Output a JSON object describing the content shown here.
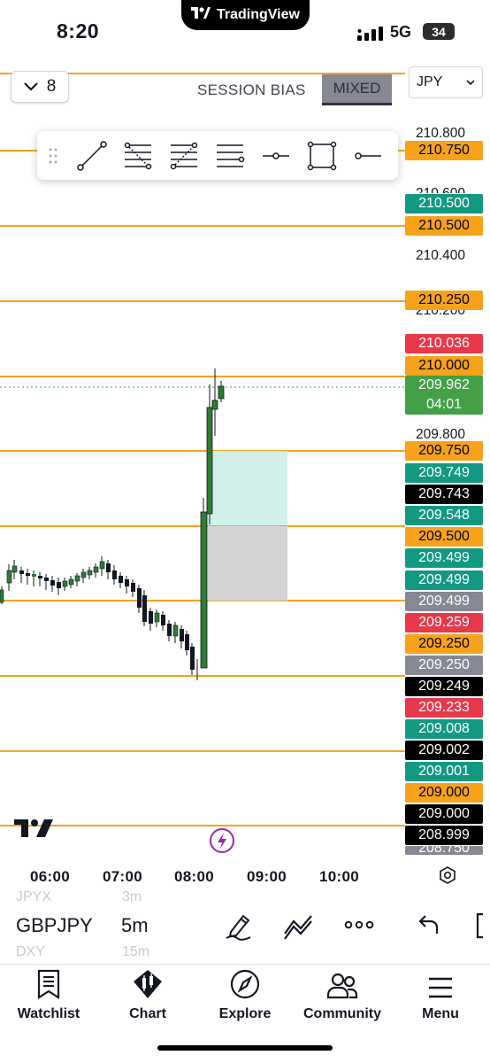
{
  "status_bar": {
    "time": "8:20",
    "island_text": "TradingView",
    "network": "5G",
    "battery": "34"
  },
  "header": {
    "interval_value": "8",
    "session_bias_label": "SESSION BIAS",
    "session_bias_value": "MIXED",
    "currency": "JPY"
  },
  "price_axis": {
    "labels": [
      "210.800",
      "210.600",
      "210.400",
      "210.200",
      "209.800"
    ],
    "tags": [
      {
        "text": "210.750",
        "bg": "#f7a21b",
        "fg": "#000000"
      },
      {
        "text": "210.500",
        "bg": "#139981",
        "fg": "#ffffff"
      },
      {
        "text": "210.500",
        "bg": "#f7a21b",
        "fg": "#000000"
      },
      {
        "text": "210.250",
        "bg": "#f7a21b",
        "fg": "#000000"
      },
      {
        "text": "210.036",
        "bg": "#e8384a",
        "fg": "#ffffff"
      },
      {
        "text": "210.000",
        "bg": "#f7a21b",
        "fg": "#000000"
      },
      {
        "text": "209.750",
        "bg": "#f7a21b",
        "fg": "#000000"
      },
      {
        "text": "209.749",
        "bg": "#139981",
        "fg": "#ffffff"
      },
      {
        "text": "209.743",
        "bg": "#000000",
        "fg": "#ffffff"
      },
      {
        "text": "209.548",
        "bg": "#139981",
        "fg": "#ffffff"
      },
      {
        "text": "209.500",
        "bg": "#f7a21b",
        "fg": "#000000"
      },
      {
        "text": "209.499",
        "bg": "#139981",
        "fg": "#ffffff"
      },
      {
        "text": "209.499",
        "bg": "#139981",
        "fg": "#ffffff"
      },
      {
        "text": "209.499",
        "bg": "#868993",
        "fg": "#ffffff"
      },
      {
        "text": "209.259",
        "bg": "#e8384a",
        "fg": "#ffffff"
      },
      {
        "text": "209.250",
        "bg": "#f7a21b",
        "fg": "#000000"
      },
      {
        "text": "209.250",
        "bg": "#868993",
        "fg": "#ffffff"
      },
      {
        "text": "209.249",
        "bg": "#000000",
        "fg": "#ffffff"
      },
      {
        "text": "209.233",
        "bg": "#e8384a",
        "fg": "#ffffff"
      },
      {
        "text": "209.008",
        "bg": "#139981",
        "fg": "#ffffff"
      },
      {
        "text": "209.002",
        "bg": "#000000",
        "fg": "#ffffff"
      },
      {
        "text": "209.001",
        "bg": "#139981",
        "fg": "#ffffff"
      },
      {
        "text": "209.000",
        "bg": "#f7a21b",
        "fg": "#000000"
      },
      {
        "text": "209.000",
        "bg": "#000000",
        "fg": "#ffffff"
      },
      {
        "text": "208.999",
        "bg": "#000000",
        "fg": "#ffffff"
      },
      {
        "text": "208.750",
        "bg": "#868993",
        "fg": "#ffffff"
      }
    ],
    "current_price": "209.962",
    "countdown": "04:01",
    "current_color": "#43a047"
  },
  "colors": {
    "level_line": "#f7a21b",
    "bull": "#2e7d32",
    "bear": "#131722",
    "target_zone": "#d2efe9",
    "stop_zone": "#d4d4d4"
  },
  "time_axis": [
    "06:00",
    "07:00",
    "08:00",
    "09:00",
    "10:00"
  ],
  "symbol_bar": {
    "prev_symbol": "JPYX",
    "symbol": "GBPJPY",
    "next_symbol": "DXY",
    "prev_tf": "3m",
    "timeframe": "5m",
    "next_tf": "15m"
  },
  "icons": {
    "draw": "pen-icon",
    "indicators": "indicators-icon",
    "more": "more-icon",
    "undo": "undo-icon"
  },
  "tabs": [
    "Watchlist",
    "Chart",
    "Explore",
    "Community",
    "Menu"
  ]
}
